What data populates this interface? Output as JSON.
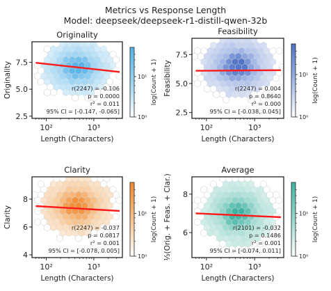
{
  "figure": {
    "title": "Metrics vs Response Length",
    "subtitle": "Model: deepseek/deepseek-r1-distill-qwen-32b"
  },
  "chart_data": [
    {
      "type": "scatter",
      "title": "Originality",
      "xlabel": "Length (Characters)",
      "ylabel": "Originality",
      "xscale": "log",
      "xlim": [
        50,
        4000
      ],
      "ylim": [
        2.3,
        9.4
      ],
      "yticks": [
        2.5,
        5.0,
        7.5
      ],
      "ytick_labels": [
        "2.5",
        "5.0",
        "7.5"
      ],
      "xtick_labels": [
        "10²",
        "10³"
      ],
      "xticks": [
        100,
        1000
      ],
      "trend_line": {
        "x": [
          60,
          3500
        ],
        "y": [
          7.45,
          6.6
        ]
      },
      "regression_line_color": "#ff1a1a",
      "colormap": "Blues",
      "colorbar_label": "log(Count + 1)",
      "colorbar_ticks": [
        "10⁰",
        "10¹"
      ],
      "stats": [
        "r(2247) = -0.106",
        "p = 0.0000",
        "r² = 0.011",
        "95% CI = [-0.147, -0.065]"
      ],
      "colors": {
        "light": "#e3f4fd",
        "mid": "#a5d8f5",
        "dark": "#56b2e8"
      },
      "density": {
        "center_log10x": 2.65,
        "center_y": 7.0,
        "spread_x": 0.32,
        "spread_y": 1.1
      }
    },
    {
      "type": "scatter",
      "title": "Feasibility",
      "xlabel": "Length (Characters)",
      "ylabel": "Feasibility",
      "xscale": "log",
      "xlim": [
        50,
        4000
      ],
      "ylim": [
        2.0,
        8.9
      ],
      "yticks": [
        2.5,
        5.0,
        7.5
      ],
      "ytick_labels": [
        "2.5",
        "5.0",
        "7.5"
      ],
      "xtick_labels": [
        "10²",
        "10³"
      ],
      "xticks": [
        100,
        1000
      ],
      "trend_line": {
        "x": [
          60,
          3500
        ],
        "y": [
          6.1,
          6.15
        ]
      },
      "regression_line_color": "#ff1a1a",
      "colormap": "Purples-Blue",
      "colorbar_label": "log(Count + 1)",
      "colorbar_ticks": [
        "10⁰",
        "10¹"
      ],
      "stats": [
        "r(2247) = 0.004",
        "p = 0.8640",
        "r² = 0.000",
        "95% CI = [-0.038, 0.045]"
      ],
      "colors": {
        "light": "#e6ecf9",
        "mid": "#a9bde9",
        "dark": "#4f72c6"
      },
      "density": {
        "center_log10x": 2.65,
        "center_y": 6.5,
        "spread_x": 0.32,
        "spread_y": 1.1
      }
    },
    {
      "type": "scatter",
      "title": "Clarity",
      "xlabel": "Length (Characters)",
      "ylabel": "Clarity",
      "xscale": "log",
      "xlim": [
        50,
        4000
      ],
      "ylim": [
        3.8,
        9.6
      ],
      "yticks": [
        4,
        6,
        8
      ],
      "ytick_labels": [
        "4",
        "6",
        "8"
      ],
      "xtick_labels": [
        "10²",
        "10³"
      ],
      "xticks": [
        100,
        1000
      ],
      "trend_line": {
        "x": [
          60,
          3500
        ],
        "y": [
          7.5,
          7.15
        ]
      },
      "regression_line_color": "#ff1a1a",
      "colormap": "Oranges",
      "colorbar_label": "log(Count + 1)",
      "colorbar_ticks": [
        "10⁰",
        "10¹"
      ],
      "stats": [
        "r(2247) = -0.037",
        "p = 0.0817",
        "r² = 0.001",
        "95% CI = [-0.078, 0.005]"
      ],
      "colors": {
        "light": "#fdeddc",
        "mid": "#f9c896",
        "dark": "#f08a2e"
      },
      "density": {
        "center_log10x": 2.65,
        "center_y": 7.5,
        "spread_x": 0.32,
        "spread_y": 0.9
      }
    },
    {
      "type": "scatter",
      "title": "Average",
      "xlabel": "Length (Characters)",
      "ylabel": "⅓(Orig. + Feas. + Clar.)",
      "xscale": "log",
      "xlim": [
        50,
        4000
      ],
      "ylim": [
        4.7,
        8.9
      ],
      "yticks": [
        6,
        8
      ],
      "ytick_labels": [
        "6",
        "8"
      ],
      "xtick_labels": [
        "10²",
        "10³"
      ],
      "xticks": [
        100,
        1000
      ],
      "trend_line": {
        "x": [
          60,
          3500
        ],
        "y": [
          7.0,
          6.8
        ]
      },
      "regression_line_color": "#ff1a1a",
      "colormap": "Teal",
      "colorbar_label": "log(Count + 1)",
      "colorbar_ticks": [
        "10⁰",
        "10¹"
      ],
      "stats": [
        "r(2101) = -0.032",
        "p = 0.1486",
        "r² = 0.001",
        "95% CI = [-0.074, 0.011]"
      ],
      "colors": {
        "light": "#e0f4f1",
        "mid": "#a2dcd3",
        "dark": "#3fb3a3"
      },
      "density": {
        "center_log10x": 2.65,
        "center_y": 7.0,
        "spread_x": 0.32,
        "spread_y": 0.7
      }
    }
  ]
}
